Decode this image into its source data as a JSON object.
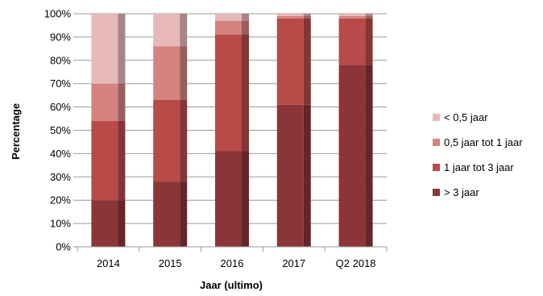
{
  "chart_data": {
    "type": "bar",
    "stacked": true,
    "normalized": true,
    "categories": [
      "2014",
      "2015",
      "2016",
      "2017",
      "Q2 2018"
    ],
    "series": [
      {
        "name": "> 3 jaar",
        "values": [
          20,
          28,
          41,
          61,
          78
        ],
        "color": "#8b3538"
      },
      {
        "name": "1 jaar tot 3 jaar",
        "values": [
          34,
          35,
          50,
          37,
          20
        ],
        "color": "#b84a48"
      },
      {
        "name": "0,5 jaar tot 1 jaar",
        "values": [
          16,
          23,
          6,
          1,
          1
        ],
        "color": "#d4837f"
      },
      {
        "name": "< 0,5 jaar",
        "values": [
          30,
          14,
          3,
          1,
          1
        ],
        "color": "#e6b9b8"
      }
    ],
    "legend_order": [
      "< 0,5 jaar",
      "0,5 jaar tot 1 jaar",
      "1 jaar tot 3 jaar",
      "> 3 jaar"
    ],
    "xlabel": "Jaar (ultimo)",
    "ylabel": "Percentage",
    "ylim": [
      0,
      100
    ],
    "yticks": [
      "0%",
      "10%",
      "20%",
      "30%",
      "40%",
      "50%",
      "60%",
      "70%",
      "80%",
      "90%",
      "100%"
    ],
    "grid": true,
    "legend_position": "right"
  }
}
